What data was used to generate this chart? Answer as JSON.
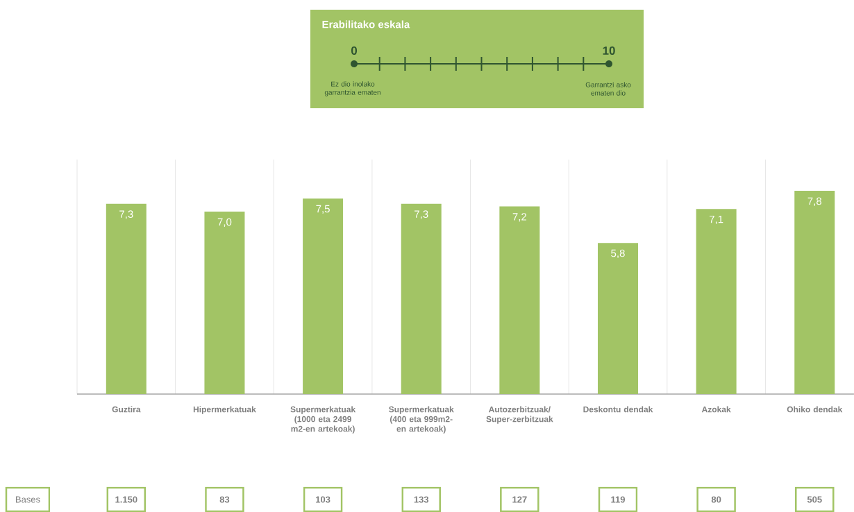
{
  "chart_data": {
    "type": "bar",
    "categories": [
      "Guztira",
      "Hipermerkatuak",
      "Supermerkatuak (1000 eta 2499 m2-en artekoak)",
      "Supermerkatuak (400 eta 999m2-en artekoak)",
      "Autozerbitzuak/ Super-zerbitzuak",
      "Deskontu dendak",
      "Azokak",
      "Ohiko dendak"
    ],
    "values": [
      7.3,
      7.0,
      7.5,
      7.3,
      7.2,
      5.8,
      7.1,
      7.8
    ],
    "value_labels": [
      "7,3",
      "7,0",
      "7,5",
      "7,3",
      "7,2",
      "5,8",
      "7,1",
      "7,8"
    ],
    "color": "#a2c465",
    "ylim": [
      0,
      9
    ],
    "grid": "x",
    "annotations": [
      "Erabilitako eskala",
      "0",
      "10",
      "Ez dio inolako garrantzia ematen",
      "Garrantzi asko ematen dio",
      "Bases",
      "1.150",
      "83",
      "103",
      "133",
      "127",
      "119",
      "80",
      "505"
    ]
  }
}
